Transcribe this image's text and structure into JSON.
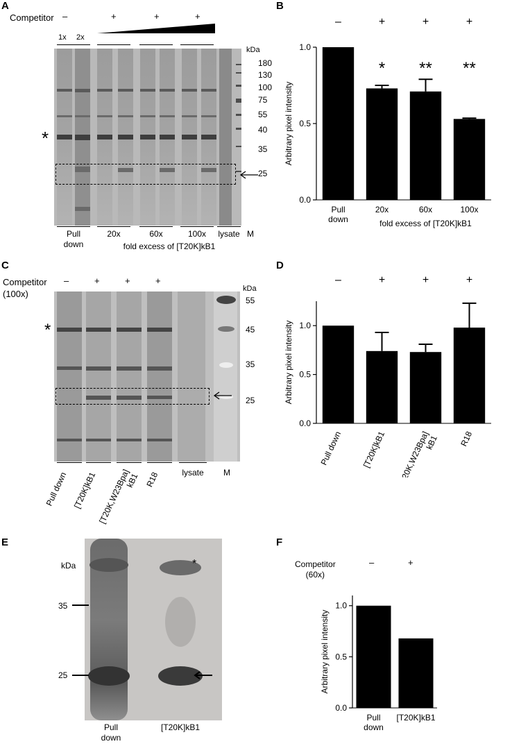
{
  "panels": {
    "a": {
      "letter": "A",
      "competitor_label": "Competitor",
      "signs": [
        "–",
        "+",
        "+",
        "+"
      ],
      "loading": [
        "1x",
        "2x"
      ],
      "marker_unit": "kDa",
      "markers": [
        "180",
        "130",
        "100",
        "75",
        "55",
        "40",
        "35",
        "25"
      ],
      "star": "*",
      "bottom_labels": [
        "Pull\ndown",
        "20x",
        "60x",
        "100x",
        "lysate",
        "M"
      ],
      "caption": "fold excess of [T20K]kB1"
    },
    "c": {
      "letter": "C",
      "competitor_label": "Competitor\n(100x)",
      "signs": [
        "–",
        "+",
        "+",
        "+"
      ],
      "marker_unit": "kDa",
      "markers": [
        "55",
        "45",
        "35",
        "25"
      ],
      "star": "*",
      "bottom_labels": [
        "Pull down",
        "[T20K]kB1",
        "[T20K,W23Bpa]\nkB1",
        "R18",
        "lysate",
        "M"
      ]
    },
    "e": {
      "letter": "E",
      "marker_unit": "kDa",
      "markers": [
        "35",
        "25"
      ],
      "star": "*",
      "bottom_labels": [
        "Pull\ndown",
        "[T20K]kB1"
      ]
    },
    "f": {
      "competitor_label": "Competitor\n(60x)",
      "signs": [
        "–",
        "+"
      ]
    }
  },
  "chart_data": [
    {
      "panel": "B",
      "type": "bar",
      "signs": [
        "–",
        "+",
        "+",
        "+"
      ],
      "categories": [
        "Pull\ndown",
        "20x",
        "60x",
        "100x"
      ],
      "values": [
        1.0,
        0.73,
        0.71,
        0.53
      ],
      "errors": [
        0,
        0.02,
        0.08,
        0.005
      ],
      "significance": [
        "",
        "*",
        "**",
        "**"
      ],
      "ylabel": "Arbitrary pixel intensity",
      "xlabel": "fold excess of [T20K]kB1",
      "yticks": [
        "0.0",
        "0.5",
        "1.0"
      ],
      "ylim": [
        0,
        1.0
      ],
      "bar_color": "#000000"
    },
    {
      "panel": "D",
      "type": "bar",
      "signs": [
        "–",
        "+",
        "+",
        "+"
      ],
      "categories": [
        "Pull down",
        "[T20K]kB1",
        "[T20K,W23Bpa]\nkB1",
        "R18"
      ],
      "values": [
        1.0,
        0.74,
        0.73,
        0.98
      ],
      "errors": [
        0,
        0.19,
        0.08,
        0.25
      ],
      "ylabel": "Arbitrary pixel intensity",
      "yticks": [
        "0.0",
        "0.5",
        "1.0"
      ],
      "ylim": [
        0,
        1.25
      ],
      "bar_color": "#000000"
    },
    {
      "panel": "F",
      "type": "bar",
      "categories": [
        "Pull\ndown",
        "[T20K]kB1"
      ],
      "values": [
        1.0,
        0.68
      ],
      "ylabel": "Arbitrary pixel intensity",
      "yticks": [
        "0.0",
        "0.5",
        "1.0"
      ],
      "ylim": [
        0,
        1.1
      ],
      "bar_color": "#000000"
    }
  ]
}
